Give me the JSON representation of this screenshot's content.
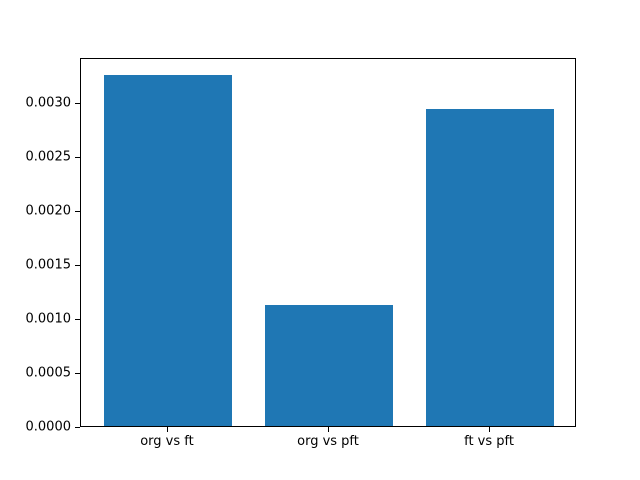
{
  "chart_data": {
    "type": "bar",
    "categories": [
      "org vs ft",
      "org vs pft",
      "ft vs pft"
    ],
    "values": [
      0.00325,
      0.00112,
      0.00293
    ],
    "title": "",
    "xlabel": "",
    "ylabel": "",
    "ylim": [
      0,
      0.0034125
    ],
    "yticks": [
      0.0,
      0.0005,
      0.001,
      0.0015,
      0.002,
      0.0025,
      0.003
    ],
    "ytick_labels": [
      "0.0000",
      "0.0005",
      "0.0010",
      "0.0015",
      "0.0020",
      "0.0025",
      "0.0030"
    ],
    "bar_color": "#1f77b4",
    "background": "#ffffff",
    "grid": false,
    "legend": null
  }
}
